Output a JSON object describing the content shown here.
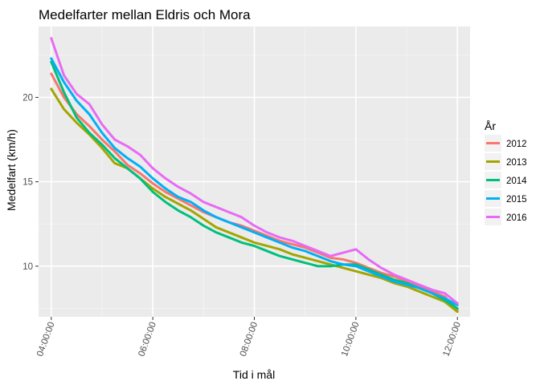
{
  "chart_data": {
    "type": "line",
    "title": "Medelfarter mellan Eldris och Mora",
    "xlabel": "Tid i mål",
    "ylabel": "Medelfart (km/h)",
    "x_unit": "hours (elapsed finish time)",
    "xlim": [
      3.75,
      12.25
    ],
    "ylim": [
      7.0,
      24.2
    ],
    "x_ticks": [
      {
        "value": 4,
        "label": "04:00:00"
      },
      {
        "value": 6,
        "label": "06:00:00"
      },
      {
        "value": 8,
        "label": "08:00:00"
      },
      {
        "value": 10,
        "label": "10:00:00"
      },
      {
        "value": 12,
        "label": "12:00:00"
      }
    ],
    "y_ticks": [
      {
        "value": 10,
        "label": "10"
      },
      {
        "value": 15,
        "label": "15"
      },
      {
        "value": 20,
        "label": "20"
      }
    ],
    "grid": true,
    "legend": {
      "title": "År",
      "position": "right"
    },
    "x": [
      4.0,
      4.25,
      4.5,
      4.75,
      5.0,
      5.25,
      5.5,
      5.75,
      6.0,
      6.25,
      6.5,
      6.75,
      7.0,
      7.25,
      7.5,
      7.75,
      8.0,
      8.25,
      8.5,
      8.75,
      9.0,
      9.25,
      9.5,
      9.75,
      10.0,
      10.25,
      10.5,
      10.75,
      11.0,
      11.25,
      11.5,
      11.75,
      12.0
    ],
    "series": [
      {
        "name": "2012",
        "color": "#F8766D",
        "values": [
          21.4,
          20.0,
          19.0,
          18.3,
          17.5,
          16.8,
          16.0,
          15.5,
          14.9,
          14.4,
          14.0,
          13.6,
          13.2,
          12.9,
          12.6,
          12.4,
          12.1,
          11.8,
          11.5,
          11.3,
          11.1,
          10.8,
          10.5,
          10.4,
          10.2,
          9.9,
          9.6,
          9.4,
          9.1,
          8.8,
          8.5,
          8.2,
          7.4
        ]
      },
      {
        "name": "2013",
        "color": "#A3A500",
        "values": [
          20.5,
          19.3,
          18.5,
          17.8,
          17.0,
          16.1,
          15.8,
          15.2,
          14.6,
          14.1,
          13.7,
          13.3,
          12.8,
          12.3,
          12.0,
          11.7,
          11.4,
          11.2,
          11.0,
          10.7,
          10.5,
          10.3,
          10.1,
          9.9,
          9.7,
          9.5,
          9.3,
          9.0,
          8.8,
          8.5,
          8.2,
          7.9,
          7.3
        ]
      },
      {
        "name": "2014",
        "color": "#00BF7D",
        "values": [
          22.1,
          20.3,
          18.8,
          17.9,
          17.2,
          16.4,
          15.8,
          15.2,
          14.4,
          13.8,
          13.3,
          12.9,
          12.4,
          12.0,
          11.7,
          11.4,
          11.2,
          10.9,
          10.6,
          10.4,
          10.2,
          10.0,
          10.0,
          10.1,
          10.1,
          9.8,
          9.5,
          9.2,
          9.0,
          8.7,
          8.4,
          8.0,
          7.5
        ]
      },
      {
        "name": "2015",
        "color": "#00B0F6",
        "values": [
          22.3,
          20.9,
          19.8,
          19.0,
          17.9,
          17.0,
          16.4,
          15.9,
          15.2,
          14.6,
          14.1,
          13.8,
          13.3,
          12.9,
          12.6,
          12.3,
          12.0,
          11.7,
          11.4,
          11.1,
          10.9,
          10.6,
          10.3,
          10.1,
          10.0,
          9.7,
          9.4,
          9.1,
          8.9,
          8.7,
          8.4,
          8.1,
          7.7
        ]
      },
      {
        "name": "2016",
        "color": "#E76BF3",
        "values": [
          23.5,
          21.3,
          20.2,
          19.6,
          18.4,
          17.5,
          17.1,
          16.6,
          15.8,
          15.2,
          14.7,
          14.3,
          13.8,
          13.5,
          13.2,
          12.9,
          12.4,
          12.0,
          11.7,
          11.5,
          11.2,
          10.9,
          10.6,
          10.8,
          11.0,
          10.4,
          9.9,
          9.5,
          9.2,
          8.9,
          8.6,
          8.4,
          7.8
        ]
      }
    ]
  }
}
